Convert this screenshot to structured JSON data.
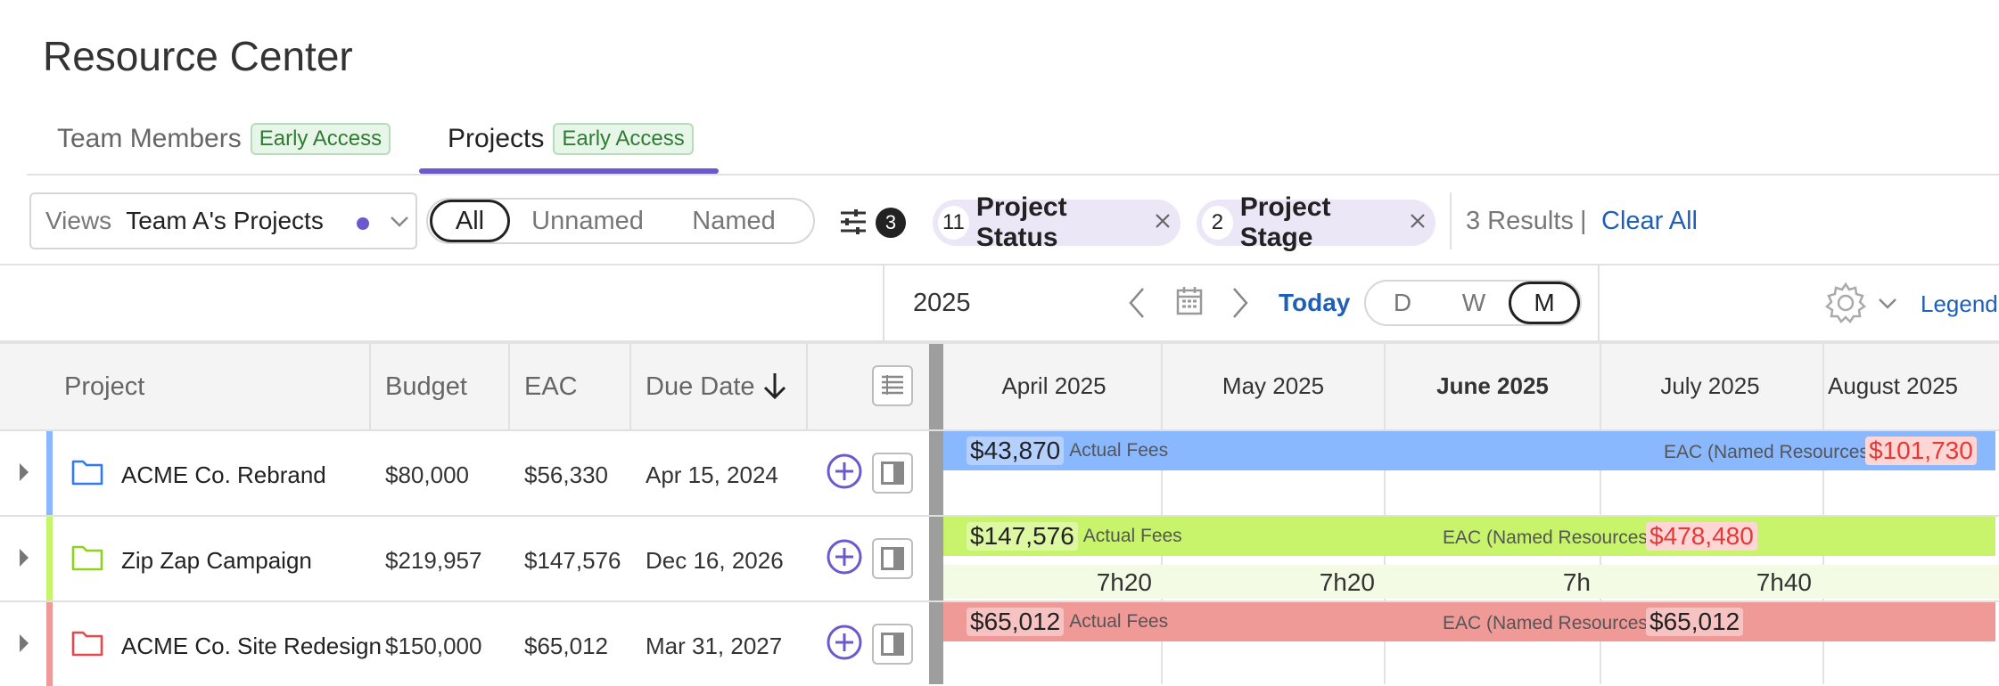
{
  "page": {
    "title": "Resource Center"
  },
  "tabs": [
    {
      "label": "Team Members",
      "badge": "Early Access"
    },
    {
      "label": "Projects",
      "badge": "Early Access"
    }
  ],
  "views": {
    "label": "Views",
    "value": "Team A's Projects"
  },
  "assignment_filter": {
    "options": [
      "All",
      "Unnamed",
      "Named"
    ],
    "selected": "All"
  },
  "filters": {
    "count": "3"
  },
  "chips": [
    {
      "count": "11",
      "label": "Project Status"
    },
    {
      "count": "2",
      "label": "Project Stage"
    }
  ],
  "results": {
    "text": "3 Results",
    "separator": "|",
    "clear_label": "Clear All"
  },
  "timeline": {
    "year": "2025",
    "today_label": "Today",
    "zoom": [
      "D",
      "W",
      "M"
    ],
    "zoom_selected": "M",
    "legend_label": "Legend",
    "months": [
      "April 2025",
      "May 2025",
      "June 2025",
      "July 2025",
      "August 2025"
    ],
    "current_month": "June 2025"
  },
  "columns": {
    "project": "Project",
    "budget": "Budget",
    "eac": "EAC",
    "due_date": "Due Date"
  },
  "projects": [
    {
      "name": "ACME Co. Rebrand",
      "budget": "$80,000",
      "eac": "$56,330",
      "due": "Apr 15, 2024",
      "color": "#8ab8ff",
      "folder_color": "#2f7bf5",
      "bar": {
        "actual": "$43,870",
        "actual_label": "Actual Fees",
        "eac_label": "EAC (Named Resources)",
        "eac_value": "$101,730"
      }
    },
    {
      "name": "Zip Zap Campaign",
      "budget": "$219,957",
      "eac": "$147,576",
      "due": "Dec 16, 2026",
      "color": "#c8f46c",
      "folder_color": "#8fd11b",
      "bar": {
        "actual": "$147,576",
        "actual_label": "Actual Fees",
        "eac_label": "EAC (Named Resources)",
        "eac_value": "$478,480"
      },
      "hours": [
        "7h20",
        "7h20",
        "7h",
        "7h40"
      ]
    },
    {
      "name": "ACME Co. Site Redesign",
      "budget": "$150,000",
      "eac": "$65,012",
      "due": "Mar 31, 2027",
      "color": "#f09a98",
      "folder_color": "#e5484d",
      "bar": {
        "actual": "$65,012",
        "actual_label": "Actual Fees",
        "eac_label": "EAC (Named Resources)",
        "eac_value": "$65,012"
      }
    }
  ],
  "colors": {
    "accent": "#6a5acd",
    "link": "#1f5fb5",
    "over_budget": "#e53935"
  }
}
